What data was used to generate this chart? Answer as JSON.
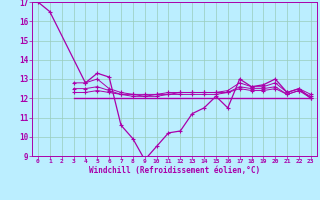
{
  "xlabel": "Windchill (Refroidissement éolien,°C)",
  "xlim": [
    -0.5,
    23.5
  ],
  "ylim": [
    9,
    17
  ],
  "yticks": [
    9,
    10,
    11,
    12,
    13,
    14,
    15,
    16,
    17
  ],
  "xticks": [
    0,
    1,
    2,
    3,
    4,
    5,
    6,
    7,
    8,
    9,
    10,
    11,
    12,
    13,
    14,
    15,
    16,
    17,
    18,
    19,
    20,
    21,
    22,
    23
  ],
  "background_color": "#bbeeff",
  "grid_color": "#99ccbb",
  "line_color": "#aa00aa",
  "line1": [
    17.0,
    16.5,
    null,
    null,
    12.8,
    13.3,
    13.1,
    10.6,
    9.9,
    8.8,
    9.5,
    10.2,
    10.3,
    11.2,
    11.5,
    12.1,
    11.5,
    13.0,
    12.6,
    12.7,
    13.0,
    12.3,
    12.5,
    12.0
  ],
  "line2": [
    null,
    null,
    null,
    12.0,
    12.0,
    12.0,
    12.0,
    12.0,
    12.0,
    12.0,
    12.0,
    12.0,
    12.0,
    12.0,
    12.0,
    12.0,
    12.0,
    12.0,
    12.0,
    12.0,
    12.0,
    12.0,
    12.0,
    12.0
  ],
  "line3": [
    null,
    null,
    null,
    12.8,
    12.8,
    13.0,
    12.5,
    12.3,
    12.2,
    12.2,
    12.2,
    12.3,
    12.3,
    12.3,
    12.3,
    12.3,
    12.4,
    12.8,
    12.6,
    12.6,
    12.8,
    12.3,
    12.5,
    12.2
  ],
  "line4": [
    null,
    null,
    null,
    12.5,
    12.5,
    12.6,
    12.4,
    12.2,
    12.2,
    12.1,
    12.2,
    12.2,
    12.3,
    12.3,
    12.3,
    12.3,
    12.3,
    12.6,
    12.5,
    12.5,
    12.6,
    12.2,
    12.4,
    12.1
  ],
  "line5": [
    null,
    null,
    null,
    12.3,
    12.3,
    12.4,
    12.3,
    12.2,
    12.1,
    12.1,
    12.1,
    12.2,
    12.2,
    12.2,
    12.2,
    12.2,
    12.3,
    12.5,
    12.4,
    12.4,
    12.5,
    12.2,
    12.4,
    12.0
  ]
}
